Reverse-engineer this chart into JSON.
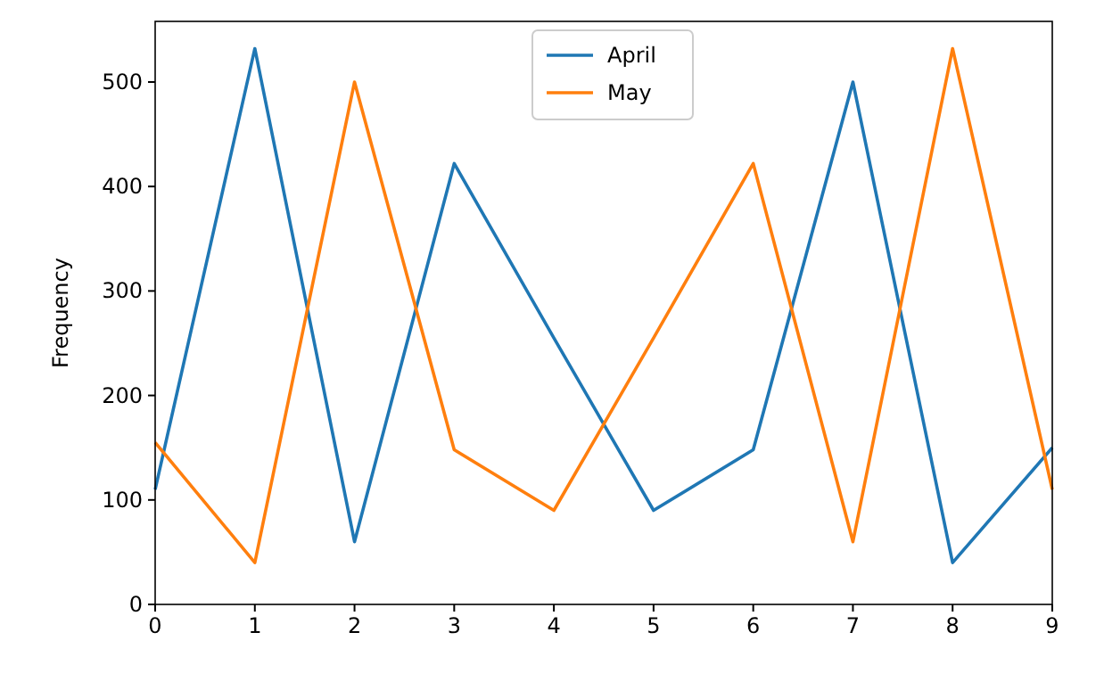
{
  "chart_data": {
    "type": "line",
    "ylabel": "Frequency",
    "x": [
      0,
      1,
      2,
      3,
      4,
      5,
      6,
      7,
      8,
      9
    ],
    "series": [
      {
        "name": "April",
        "color": "#1f77b4",
        "values": [
          110,
          532,
          60,
          422,
          255,
          90,
          148,
          500,
          40,
          150
        ]
      },
      {
        "name": "May",
        "color": "#ff7f0e",
        "values": [
          155,
          40,
          500,
          148,
          90,
          255,
          422,
          60,
          532,
          110
        ]
      }
    ],
    "xlim": [
      0,
      9
    ],
    "xticks": [
      0,
      1,
      2,
      3,
      4,
      5,
      6,
      7,
      8,
      9
    ],
    "ylim": [
      0,
      558
    ],
    "yticks": [
      0,
      100,
      200,
      300,
      400,
      500
    ],
    "legend": "top",
    "grid": false
  }
}
